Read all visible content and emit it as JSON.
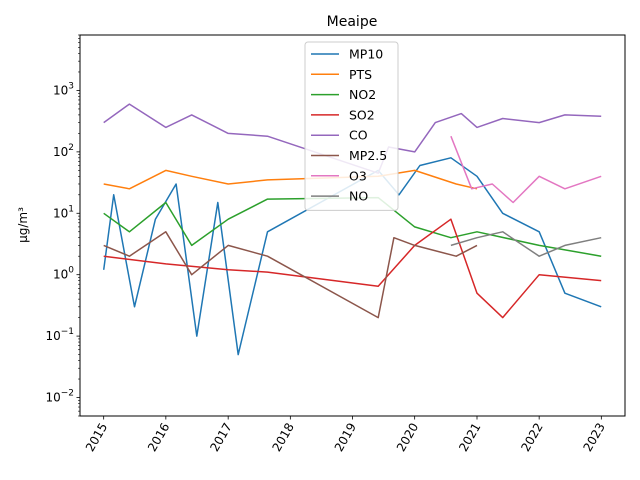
{
  "chart_data": {
    "type": "line",
    "title": "Meaipe",
    "xlabel": "",
    "ylabel": "µg/m³",
    "y_scale": "log",
    "ylim": [
      0.005,
      8000
    ],
    "xlim": [
      "2014-08-15",
      "2023-05-20"
    ],
    "y_ticks": [
      {
        "value": 0.01,
        "base": "10",
        "exp": "−2"
      },
      {
        "value": 0.1,
        "base": "10",
        "exp": "−1"
      },
      {
        "value": 1,
        "base": "10",
        "exp": "0"
      },
      {
        "value": 10,
        "base": "10",
        "exp": "1"
      },
      {
        "value": 100,
        "base": "10",
        "exp": "2"
      },
      {
        "value": 1000,
        "base": "10",
        "exp": "3"
      }
    ],
    "x_ticks": [
      "2015",
      "2016",
      "2017",
      "2018",
      "2019",
      "2020",
      "2021",
      "2022",
      "2023"
    ],
    "grid": false,
    "legend_position": "top-center",
    "series": [
      {
        "name": "MP10",
        "color": "#1f77b4",
        "points": [
          [
            "2015-01-01",
            1.2
          ],
          [
            "2015-03-01",
            20
          ],
          [
            "2015-07-01",
            0.3
          ],
          [
            "2015-11-01",
            8
          ],
          [
            "2016-03-01",
            30
          ],
          [
            "2016-07-01",
            0.1
          ],
          [
            "2016-11-01",
            15
          ],
          [
            "2017-03-01",
            0.05
          ],
          [
            "2017-08-20",
            5
          ],
          [
            "2019-06-01",
            50
          ],
          [
            "2019-10-01",
            20
          ],
          [
            "2020-02-01",
            60
          ],
          [
            "2020-08-01",
            80
          ],
          [
            "2021-01-01",
            40
          ],
          [
            "2021-06-01",
            10
          ],
          [
            "2022-01-01",
            5
          ],
          [
            "2022-06-01",
            0.5
          ],
          [
            "2022-12-31",
            0.3
          ]
        ]
      },
      {
        "name": "PTS",
        "color": "#ff7f0e",
        "points": [
          [
            "2015-01-01",
            30
          ],
          [
            "2015-06-01",
            25
          ],
          [
            "2016-01-01",
            50
          ],
          [
            "2016-06-01",
            40
          ],
          [
            "2017-01-01",
            30
          ],
          [
            "2017-08-20",
            35
          ],
          [
            "2019-06-01",
            40
          ],
          [
            "2020-01-01",
            50
          ],
          [
            "2020-09-01",
            30
          ],
          [
            "2021-01-01",
            25
          ]
        ]
      },
      {
        "name": "NO2",
        "color": "#2ca02c",
        "points": [
          [
            "2015-01-01",
            10
          ],
          [
            "2015-06-01",
            5
          ],
          [
            "2016-01-01",
            15
          ],
          [
            "2016-06-01",
            3
          ],
          [
            "2017-01-01",
            8
          ],
          [
            "2017-08-20",
            17
          ],
          [
            "2019-06-01",
            18
          ],
          [
            "2020-01-01",
            6
          ],
          [
            "2020-08-01",
            4
          ],
          [
            "2021-01-01",
            5
          ],
          [
            "2022-01-01",
            3
          ],
          [
            "2022-12-31",
            2
          ]
        ]
      },
      {
        "name": "SO2",
        "color": "#d62728",
        "points": [
          [
            "2015-01-01",
            2
          ],
          [
            "2016-01-01",
            1.5
          ],
          [
            "2017-01-01",
            1.2
          ],
          [
            "2017-08-20",
            1.1
          ],
          [
            "2019-06-01",
            0.65
          ],
          [
            "2020-01-01",
            3
          ],
          [
            "2020-08-01",
            8
          ],
          [
            "2021-01-01",
            0.5
          ],
          [
            "2021-06-01",
            0.2
          ],
          [
            "2022-01-01",
            1
          ],
          [
            "2022-12-31",
            0.8
          ]
        ]
      },
      {
        "name": "CO",
        "color": "#9467bd",
        "points": [
          [
            "2015-01-01",
            300
          ],
          [
            "2015-06-01",
            600
          ],
          [
            "2016-01-01",
            250
          ],
          [
            "2016-06-01",
            400
          ],
          [
            "2017-01-01",
            200
          ],
          [
            "2017-08-20",
            180
          ],
          [
            "2019-06-01",
            45
          ],
          [
            "2019-08-01",
            120
          ],
          [
            "2020-01-01",
            100
          ],
          [
            "2020-05-01",
            300
          ],
          [
            "2020-10-01",
            420
          ],
          [
            "2021-01-01",
            250
          ],
          [
            "2021-06-01",
            350
          ],
          [
            "2022-01-01",
            300
          ],
          [
            "2022-06-01",
            400
          ],
          [
            "2022-12-31",
            380
          ]
        ]
      },
      {
        "name": "MP2.5",
        "color": "#8c564b",
        "points": [
          [
            "2015-01-01",
            3
          ],
          [
            "2015-06-01",
            2
          ],
          [
            "2016-01-01",
            5
          ],
          [
            "2016-06-01",
            1
          ],
          [
            "2017-01-01",
            3
          ],
          [
            "2017-08-20",
            2
          ],
          [
            "2019-06-01",
            0.2
          ],
          [
            "2019-09-01",
            4
          ],
          [
            "2020-01-01",
            3
          ],
          [
            "2020-09-01",
            2
          ],
          [
            "2021-01-01",
            3
          ]
        ]
      },
      {
        "name": "O3",
        "color": "#e377c2",
        "points": [
          [
            "2020-08-01",
            180
          ],
          [
            "2020-12-01",
            25
          ],
          [
            "2021-04-01",
            30
          ],
          [
            "2021-08-01",
            15
          ],
          [
            "2022-01-01",
            40
          ],
          [
            "2022-06-01",
            25
          ],
          [
            "2022-12-31",
            40
          ]
        ]
      },
      {
        "name": "NO",
        "color": "#7f7f7f",
        "points": [
          [
            "2020-08-01",
            3
          ],
          [
            "2021-01-01",
            4
          ],
          [
            "2021-06-01",
            5
          ],
          [
            "2022-01-01",
            2
          ],
          [
            "2022-06-01",
            3
          ],
          [
            "2022-12-31",
            4
          ]
        ]
      }
    ]
  }
}
